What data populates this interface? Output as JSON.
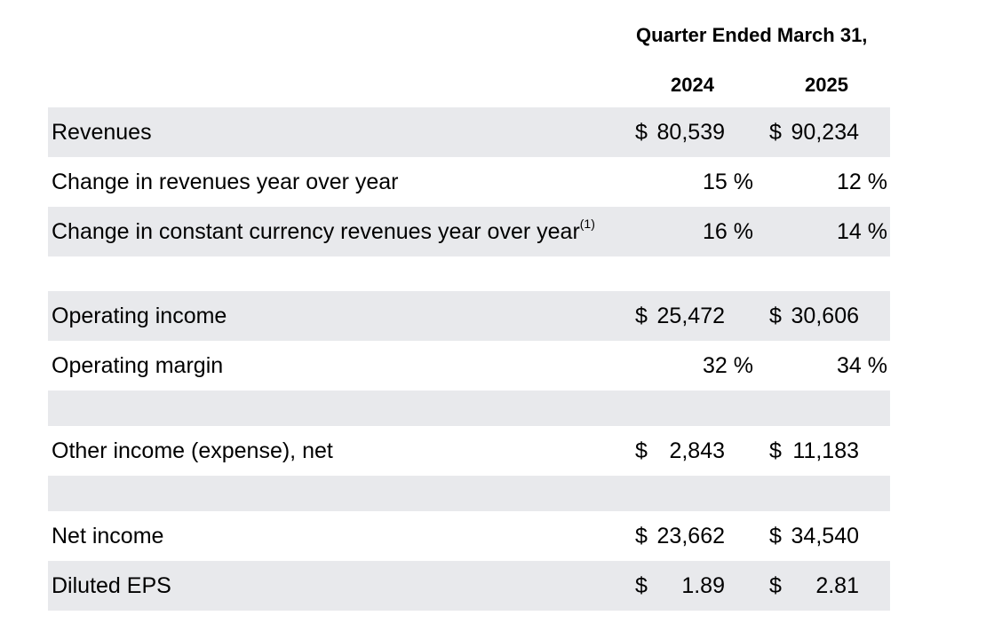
{
  "header": {
    "period": "Quarter Ended March 31,",
    "years": [
      "2024",
      "2025"
    ]
  },
  "rows": [
    {
      "label": "Revenues",
      "footnote": "",
      "c1": "$",
      "v1": "80,539",
      "c2": "$",
      "v2": "90,234",
      "kind": "money",
      "shaded": true
    },
    {
      "label": "Change in revenues year over year",
      "footnote": "",
      "v1": "15 %",
      "v2": "12 %",
      "kind": "pct",
      "shaded": false
    },
    {
      "label": "Change in constant currency revenues year over year",
      "footnote": "(1)",
      "v1": "16 %",
      "v2": "14 %",
      "kind": "pct",
      "shaded": true
    },
    {
      "kind": "spacer",
      "shaded": false
    },
    {
      "label": "Operating income",
      "footnote": "",
      "c1": "$",
      "v1": "25,472",
      "c2": "$",
      "v2": "30,606",
      "kind": "money",
      "shaded": true
    },
    {
      "label": "Operating margin",
      "footnote": "",
      "v1": "32 %",
      "v2": "34 %",
      "kind": "pct",
      "shaded": false
    },
    {
      "kind": "spacer",
      "shaded": true
    },
    {
      "label": "Other income (expense), net",
      "footnote": "",
      "c1": "$",
      "v1": "2,843",
      "c2": "$",
      "v2": "11,183",
      "kind": "money",
      "shaded": false
    },
    {
      "kind": "spacer",
      "shaded": true
    },
    {
      "label": "Net income",
      "footnote": "",
      "c1": "$",
      "v1": "23,662",
      "c2": "$",
      "v2": "34,540",
      "kind": "money",
      "shaded": false
    },
    {
      "label": "Diluted EPS",
      "footnote": "",
      "c1": "$",
      "v1": "1.89",
      "c2": "$",
      "v2": "2.81",
      "kind": "money",
      "shaded": true
    }
  ]
}
